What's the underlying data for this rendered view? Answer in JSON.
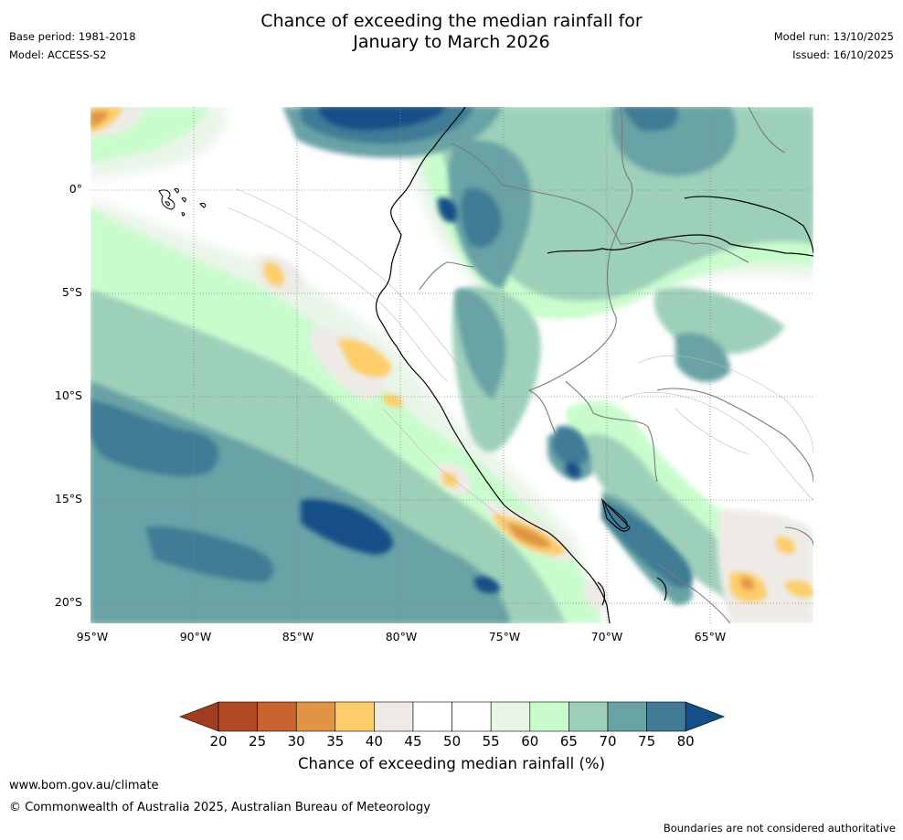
{
  "title": {
    "line1": "Chance of exceeding the median rainfall for",
    "line2": "January to March 2026"
  },
  "meta": {
    "base_period": "Base period: 1981-2018",
    "model": "Model: ACCESS-S2",
    "model_run": "Model run: 13/10/2025",
    "issued": "Issued: 16/10/2025"
  },
  "axes": {
    "lat_labels": [
      "0°",
      "5°S",
      "10°S",
      "15°S",
      "20°S"
    ],
    "lon_labels": [
      "95°W",
      "90°W",
      "85°W",
      "80°W",
      "75°W",
      "70°W",
      "65°W"
    ]
  },
  "colorbar": {
    "ticks": [
      "20",
      "25",
      "30",
      "35",
      "40",
      "45",
      "50",
      "55",
      "60",
      "65",
      "70",
      "75",
      "80"
    ],
    "colors": [
      "#a13c21",
      "#b14a24",
      "#c96330",
      "#e09444",
      "#fdcd6a",
      "#eeebe7",
      "#ffffff",
      "#ffffff",
      "#e9f5e9",
      "#c9fccc",
      "#9dd0b9",
      "#69a3a6",
      "#417b96",
      "#154f87"
    ],
    "label": "Chance of exceeding median rainfall (%)"
  },
  "footer": {
    "website": "www.bom.gov.au/climate",
    "copyright": "© Commonwealth of Australia 2025, Australian Bureau of Meteorology",
    "disclaimer": "Boundaries are not considered authoritative"
  }
}
